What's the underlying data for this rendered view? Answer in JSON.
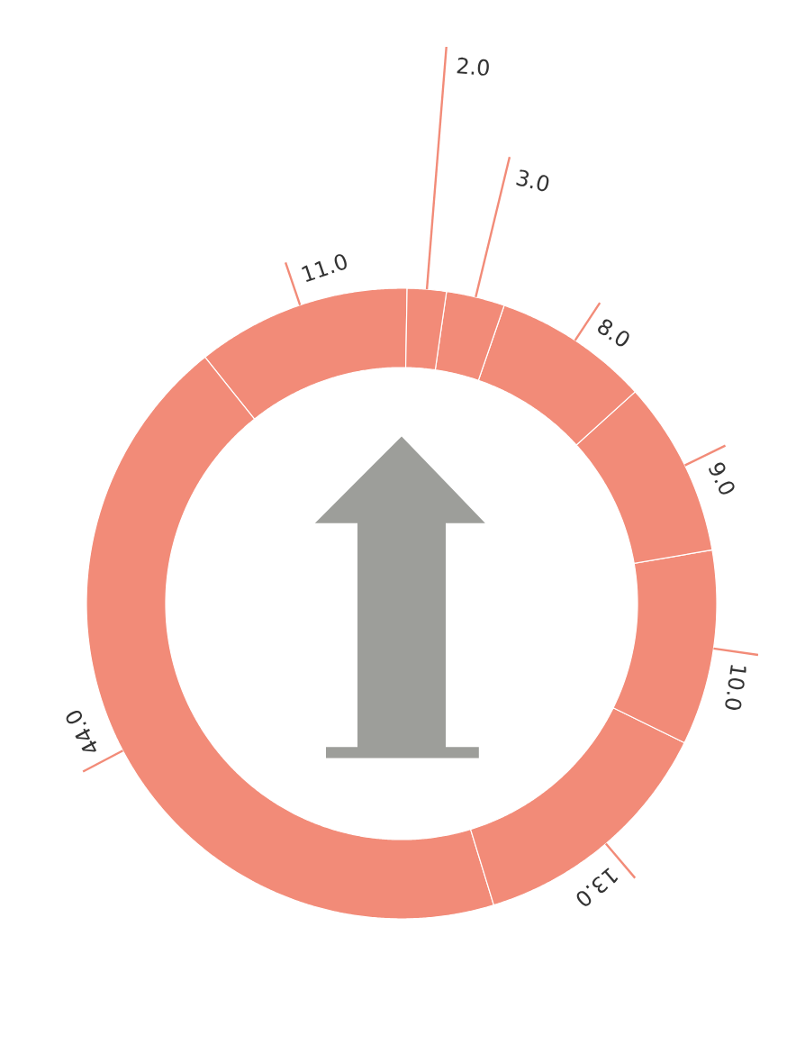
{
  "chart_data": {
    "type": "donut",
    "categories": [
      null,
      null,
      null,
      null,
      null,
      null,
      null,
      null
    ],
    "values": [
      2,
      3,
      8,
      9,
      10,
      13,
      44,
      11
    ],
    "colors": [
      "#f28b78",
      "#f28b78",
      "#f28b78",
      "#f28b78",
      "#f28b78",
      "#f28b78",
      "#f28b78",
      "#f28b78"
    ],
    "value_labels": [
      "2.0",
      "3.0",
      "8.0",
      "9.0",
      "10.0",
      "13.0",
      "44.0",
      "11.0"
    ]
  }
}
